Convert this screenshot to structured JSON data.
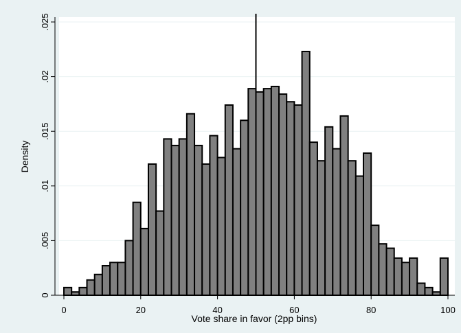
{
  "chart_data": {
    "type": "bar",
    "title": "",
    "xlabel": "Vote share in favor (2pp bins)",
    "ylabel": "Density",
    "xlim": [
      0,
      100
    ],
    "ylim": [
      0,
      0.025
    ],
    "bin_width": 2,
    "x_ticks": [
      0,
      20,
      40,
      60,
      80,
      100
    ],
    "x_tick_labels": [
      "0",
      "20",
      "40",
      "60",
      "80",
      "100"
    ],
    "y_ticks": [
      0,
      0.005,
      0.01,
      0.015,
      0.02,
      0.025
    ],
    "y_tick_labels": [
      "0",
      ".005",
      ".01",
      ".015",
      ".02",
      ".025"
    ],
    "grid": "horizontal",
    "reference_line_x": 50,
    "bin_starts": [
      0,
      2,
      4,
      6,
      8,
      10,
      12,
      14,
      16,
      18,
      20,
      22,
      24,
      26,
      28,
      30,
      32,
      34,
      36,
      38,
      40,
      42,
      44,
      46,
      48,
      50,
      52,
      54,
      56,
      58,
      60,
      62,
      64,
      66,
      68,
      70,
      72,
      74,
      76,
      78,
      80,
      82,
      84,
      86,
      88,
      90,
      92,
      94,
      96,
      98
    ],
    "values": [
      0.0007,
      0.0003,
      0.0007,
      0.0014,
      0.0019,
      0.0027,
      0.003,
      0.003,
      0.005,
      0.0085,
      0.0061,
      0.012,
      0.0077,
      0.0143,
      0.0137,
      0.0143,
      0.0166,
      0.0137,
      0.012,
      0.0146,
      0.0126,
      0.0174,
      0.0134,
      0.016,
      0.0189,
      0.0186,
      0.0189,
      0.0191,
      0.0184,
      0.0177,
      0.0174,
      0.0223,
      0.014,
      0.0123,
      0.0154,
      0.0134,
      0.0164,
      0.0123,
      0.0109,
      0.013,
      0.0064,
      0.0047,
      0.0043,
      0.0034,
      0.003,
      0.0034,
      0.0011,
      0.0007,
      0.0003,
      0.0034
    ],
    "colors": {
      "bar_fill": "#808080",
      "bar_stroke": "#000000",
      "plot_bg": "#ffffff",
      "outer_bg": "#eaf2f3",
      "grid": "#eaf2f3"
    }
  }
}
